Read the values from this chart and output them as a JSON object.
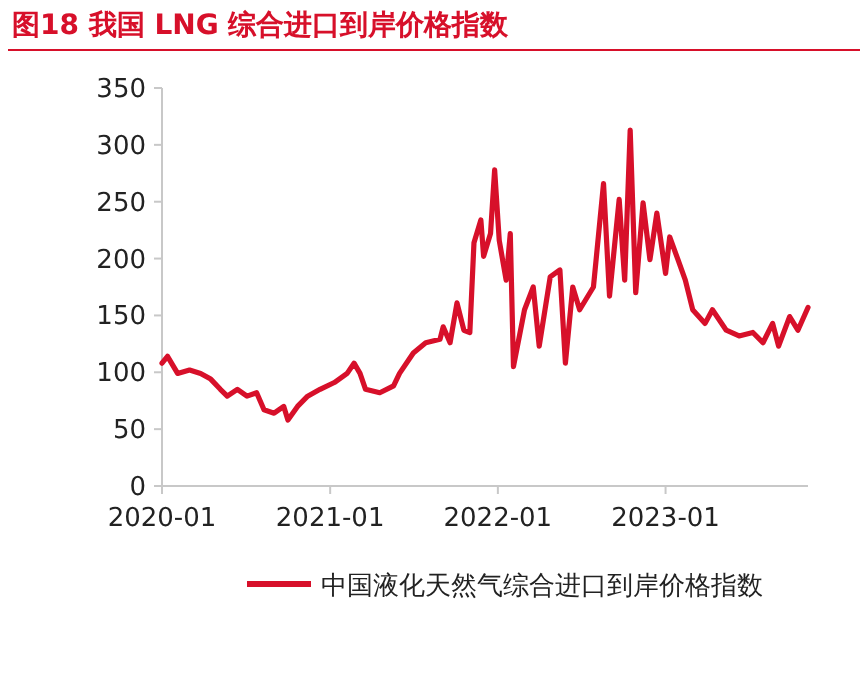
{
  "chart_data": {
    "type": "line",
    "title": "图18  我国 LNG 综合进口到岸价格指数",
    "x": [
      "2020-01-01",
      "2020-01-13",
      "2020-02-04",
      "2020-03-01",
      "2020-03-25",
      "2020-04-16",
      "2020-05-07",
      "2020-05-22",
      "2020-06-13",
      "2020-07-04",
      "2020-07-25",
      "2020-08-10",
      "2020-09-01",
      "2020-09-22",
      "2020-10-01",
      "2020-10-22",
      "2020-11-13",
      "2020-12-10",
      "2021-01-10",
      "2021-02-07",
      "2021-02-22",
      "2021-03-07",
      "2021-03-19",
      "2021-04-19",
      "2021-05-19",
      "2021-06-01",
      "2021-07-01",
      "2021-07-28",
      "2021-08-28",
      "2021-09-04",
      "2021-09-19",
      "2021-10-04",
      "2021-10-19",
      "2021-11-01",
      "2021-11-10",
      "2021-11-25",
      "2021-12-01",
      "2021-12-16",
      "2021-12-25",
      "2022-01-04",
      "2022-01-19",
      "2022-01-28",
      "2022-02-04",
      "2022-02-28",
      "2022-03-19",
      "2022-04-01",
      "2022-04-25",
      "2022-05-16",
      "2022-05-28",
      "2022-06-13",
      "2022-06-28",
      "2022-07-28",
      "2022-08-19",
      "2022-09-01",
      "2022-09-22",
      "2022-10-04",
      "2022-10-16",
      "2022-10-28",
      "2022-11-13",
      "2022-11-28",
      "2022-12-13",
      "2023-01-01",
      "2023-01-10",
      "2023-01-28",
      "2023-02-13",
      "2023-03-01",
      "2023-03-28",
      "2023-04-13",
      "2023-05-13",
      "2023-06-10",
      "2023-07-10",
      "2023-08-01",
      "2023-08-22",
      "2023-09-04",
      "2023-09-28",
      "2023-10-16",
      "2023-11-07"
    ],
    "series": [
      {
        "name": "中国液化天然气综合进口到岸价格指数",
        "color": "#d7102a",
        "values": [
          108,
          114,
          99,
          102,
          99,
          94,
          85,
          79,
          85,
          79,
          82,
          67,
          64,
          70,
          58,
          70,
          79,
          85,
          91,
          99,
          108,
          99,
          85,
          82,
          88,
          99,
          117,
          126,
          129,
          140,
          126,
          161,
          137,
          135,
          214,
          234,
          202,
          222,
          278,
          216,
          181,
          222,
          105,
          155,
          175,
          123,
          184,
          190,
          108,
          175,
          155,
          175,
          266,
          167,
          252,
          181,
          313,
          170,
          249,
          199,
          240,
          187,
          219,
          199,
          181,
          155,
          143,
          155,
          137,
          132,
          135,
          126,
          143,
          123,
          149,
          137,
          157
        ]
      }
    ],
    "xlim": [
      "2020-01-01",
      "2023-11-07"
    ],
    "xticks": [
      "2020-01",
      "2021-01",
      "2022-01",
      "2023-01"
    ],
    "ylim": [
      0,
      350
    ],
    "yticks": [
      0,
      50,
      100,
      150,
      200,
      250,
      300,
      350
    ],
    "grid": false,
    "legend": "bottom",
    "marker": "none",
    "line_style": "solid"
  }
}
